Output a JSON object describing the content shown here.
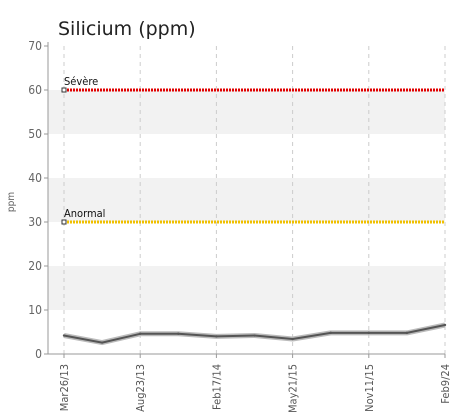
{
  "chart_data": {
    "type": "line",
    "title": "Silicium (ppm)",
    "ylabel": "ppm",
    "xlabel": "",
    "ylim": [
      0,
      70
    ],
    "yticks": [
      0,
      10,
      20,
      30,
      40,
      50,
      60,
      70
    ],
    "x_tick_labels": [
      "Mar26/13",
      "Aug23/13",
      "Feb17/14",
      "May21/15",
      "Nov11/15",
      "Feb9/24"
    ],
    "series": [
      {
        "values": [
          4.2,
          2.6,
          4.6,
          4.6,
          4.0,
          4.2,
          3.4,
          4.8,
          4.8,
          4.8,
          6.6
        ],
        "color": "#555555"
      }
    ],
    "thresholds": [
      {
        "label": "Sévère",
        "value": 60,
        "color": "#e00000"
      },
      {
        "label": "Anormal",
        "value": 30,
        "color": "#f0c000"
      }
    ],
    "grid": true,
    "band_color": "#f2f2f2"
  }
}
